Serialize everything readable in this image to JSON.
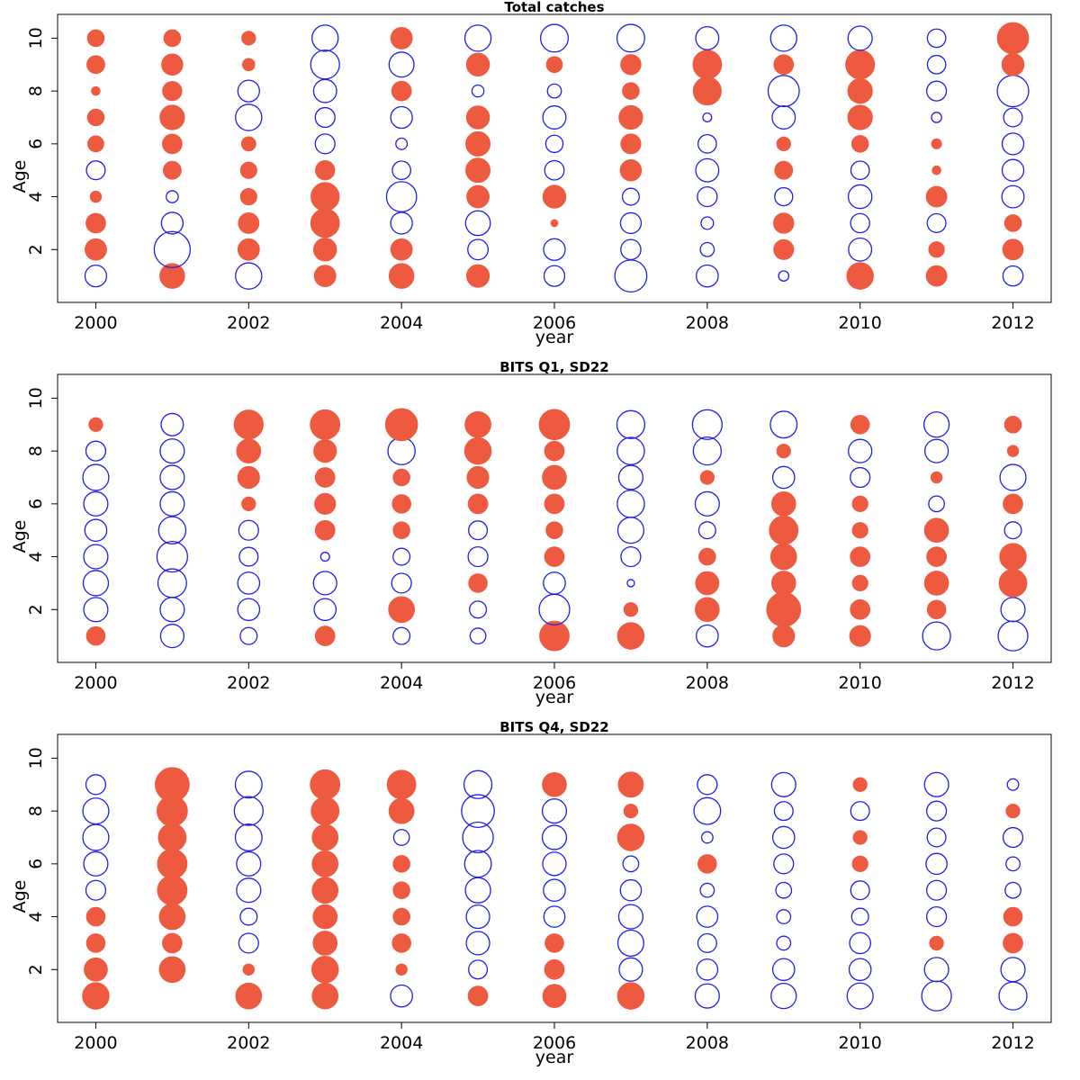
{
  "figure": {
    "colors": {
      "positive": "#ee5a40",
      "negative": "#1f1fe6",
      "frame": "#000000"
    },
    "encoding": "Bubble area proportional to |residual|; filled red = positive, open blue = negative"
  },
  "chart_data": [
    {
      "type": "scatter",
      "subtype": "bubble",
      "title": "Total catches",
      "xlabel": "year",
      "ylabel": "Age",
      "xlim": [
        1999.5,
        2012.5
      ],
      "ylim": [
        0,
        10.9
      ],
      "xticks": [
        2000,
        2002,
        2004,
        2006,
        2008,
        2010,
        2012
      ],
      "yticks": [
        2,
        4,
        6,
        8,
        10
      ],
      "ages": [
        1,
        2,
        3,
        4,
        5,
        6,
        7,
        8,
        9,
        10
      ],
      "series": [
        {
          "year": 2000,
          "values": [
            -0.36,
            0.36,
            0.3,
            0.1,
            -0.27,
            0.2,
            0.22,
            0.06,
            0.25,
            0.22
          ]
        },
        {
          "year": 2001,
          "values": [
            0.48,
            -1.0,
            -0.36,
            -0.11,
            0.25,
            0.3,
            0.47,
            0.29,
            0.35,
            0.22
          ]
        },
        {
          "year": 2002,
          "values": [
            -0.53,
            0.36,
            0.33,
            0.21,
            0.21,
            0.16,
            -0.53,
            -0.36,
            0.12,
            0.15
          ]
        },
        {
          "year": 2003,
          "values": [
            0.36,
            0.41,
            0.64,
            0.62,
            0.29,
            -0.3,
            -0.3,
            -0.41,
            -0.64,
            -0.53
          ]
        },
        {
          "year": 2004,
          "values": [
            0.48,
            0.36,
            -0.36,
            -0.7,
            -0.26,
            -0.1,
            -0.36,
            0.3,
            -0.48,
            0.36
          ]
        },
        {
          "year": 2005,
          "values": [
            0.4,
            -0.32,
            -0.47,
            0.39,
            0.46,
            0.46,
            0.41,
            -0.11,
            0.41,
            -0.53
          ]
        },
        {
          "year": 2006,
          "values": [
            -0.33,
            -0.36,
            0.04,
            0.41,
            -0.29,
            -0.23,
            -0.41,
            -0.15,
            0.2,
            -0.59
          ]
        },
        {
          "year": 2007,
          "values": [
            -0.79,
            -0.31,
            -0.33,
            -0.22,
            0.35,
            0.31,
            0.44,
            0.22,
            0.32,
            -0.59
          ]
        },
        {
          "year": 2008,
          "values": [
            -0.37,
            -0.15,
            -0.12,
            -0.3,
            -0.41,
            -0.26,
            -0.06,
            0.61,
            0.64,
            -0.41
          ]
        },
        {
          "year": 2009,
          "values": [
            -0.08,
            0.31,
            0.32,
            -0.25,
            0.25,
            0.15,
            -0.41,
            -0.75,
            0.3,
            -0.53
          ]
        },
        {
          "year": 2010,
          "values": [
            0.55,
            -0.41,
            -0.28,
            -0.43,
            -0.26,
            0.22,
            0.47,
            0.47,
            0.65,
            -0.45
          ]
        },
        {
          "year": 2011,
          "values": [
            0.33,
            0.19,
            -0.27,
            0.33,
            0.06,
            0.08,
            -0.08,
            -0.3,
            -0.26,
            -0.26
          ]
        },
        {
          "year": 2012,
          "values": [
            -0.31,
            0.33,
            0.22,
            -0.38,
            -0.36,
            -0.36,
            -0.27,
            -0.76,
            0.38,
            0.76
          ]
        }
      ]
    },
    {
      "type": "scatter",
      "subtype": "bubble",
      "title": "BITS Q1, SD22",
      "xlabel": "year",
      "ylabel": "Age",
      "xlim": [
        1999.5,
        2012.5
      ],
      "ylim": [
        0,
        10.9
      ],
      "xticks": [
        2000,
        2002,
        2004,
        2006,
        2008,
        2010,
        2012
      ],
      "yticks": [
        2,
        4,
        6,
        8,
        10
      ],
      "ages": [
        1,
        2,
        3,
        4,
        5,
        6,
        7,
        8,
        9
      ],
      "series": [
        {
          "year": 2000,
          "values": [
            0.27,
            -0.45,
            -0.49,
            -0.45,
            -0.37,
            -0.45,
            -0.52,
            -0.3,
            0.15
          ]
        },
        {
          "year": 2001,
          "values": [
            -0.42,
            -0.45,
            -0.63,
            -0.72,
            -0.57,
            -0.45,
            -0.45,
            -0.45,
            -0.38
          ]
        },
        {
          "year": 2002,
          "values": [
            -0.22,
            -0.37,
            -0.37,
            -0.27,
            -0.3,
            0.15,
            0.37,
            0.45,
            0.66
          ]
        },
        {
          "year": 2003,
          "values": [
            0.3,
            -0.37,
            -0.42,
            -0.06,
            0.3,
            0.34,
            0.3,
            0.4,
            0.68
          ]
        },
        {
          "year": 2004,
          "values": [
            -0.22,
            0.52,
            -0.3,
            -0.22,
            0.22,
            0.27,
            0.22,
            -0.57,
            0.8
          ]
        },
        {
          "year": 2005,
          "values": [
            -0.19,
            -0.22,
            0.27,
            -0.3,
            -0.27,
            0.3,
            0.37,
            0.55,
            0.52
          ]
        },
        {
          "year": 2006,
          "values": [
            0.68,
            -0.72,
            -0.37,
            0.3,
            0.22,
            0.3,
            0.45,
            0.3,
            0.72
          ]
        },
        {
          "year": 2007,
          "values": [
            0.55,
            0.15,
            -0.04,
            -0.3,
            -0.52,
            -0.57,
            -0.45,
            -0.57,
            -0.6
          ]
        },
        {
          "year": 2008,
          "values": [
            -0.37,
            0.45,
            0.42,
            0.22,
            -0.22,
            -0.45,
            0.15,
            -0.6,
            -0.68
          ]
        },
        {
          "year": 2009,
          "values": [
            0.37,
            0.9,
            0.45,
            0.52,
            0.64,
            0.45,
            -0.37,
            0.15,
            -0.55
          ]
        },
        {
          "year": 2010,
          "values": [
            0.34,
            0.3,
            0.19,
            0.3,
            0.19,
            0.19,
            -0.3,
            -0.42,
            0.27
          ]
        },
        {
          "year": 2011,
          "values": [
            -0.6,
            0.27,
            0.45,
            0.3,
            0.45,
            -0.19,
            0.1,
            -0.42,
            -0.49
          ]
        },
        {
          "year": 2012,
          "values": [
            -0.68,
            -0.45,
            0.6,
            0.55,
            -0.22,
            0.3,
            -0.52,
            0.1,
            0.22
          ]
        }
      ]
    },
    {
      "type": "scatter",
      "subtype": "bubble",
      "title": "BITS Q4, SD22",
      "xlabel": "year",
      "ylabel": "Age",
      "xlim": [
        1999.5,
        2012.5
      ],
      "ylim": [
        0,
        10.9
      ],
      "xticks": [
        2000,
        2002,
        2004,
        2006,
        2008,
        2010,
        2012
      ],
      "yticks": [
        2,
        4,
        6,
        8,
        10
      ],
      "ages": [
        1,
        2,
        3,
        4,
        5,
        6,
        7,
        8,
        9
      ],
      "series": [
        {
          "year": 2000,
          "values": [
            0.55,
            0.42,
            0.27,
            0.27,
            -0.3,
            -0.45,
            -0.52,
            -0.52,
            -0.3
          ]
        },
        {
          "year": 2001,
          "values": [
            0.0,
            0.52,
            0.3,
            0.52,
            0.68,
            0.68,
            0.6,
            0.72,
            0.9
          ]
        },
        {
          "year": 2002,
          "values": [
            0.52,
            0.1,
            -0.3,
            -0.22,
            -0.45,
            -0.45,
            -0.55,
            -0.64,
            -0.55
          ]
        },
        {
          "year": 2003,
          "values": [
            0.52,
            0.55,
            0.45,
            0.45,
            0.52,
            0.52,
            0.52,
            0.6,
            0.68
          ]
        },
        {
          "year": 2004,
          "values": [
            -0.37,
            0.1,
            0.27,
            0.22,
            0.22,
            0.22,
            -0.19,
            0.49,
            0.64
          ]
        },
        {
          "year": 2005,
          "values": [
            0.3,
            -0.27,
            -0.42,
            -0.42,
            -0.49,
            -0.55,
            -0.72,
            -0.83,
            -0.6
          ]
        },
        {
          "year": 2006,
          "values": [
            0.42,
            0.3,
            0.27,
            -0.34,
            -0.37,
            -0.42,
            -0.45,
            -0.45,
            0.45
          ]
        },
        {
          "year": 2007,
          "values": [
            0.55,
            -0.42,
            -0.52,
            -0.45,
            -0.34,
            -0.19,
            0.55,
            0.15,
            0.49
          ]
        },
        {
          "year": 2008,
          "values": [
            -0.45,
            -0.34,
            -0.27,
            -0.34,
            -0.15,
            0.27,
            -0.1,
            -0.55,
            -0.3
          ]
        },
        {
          "year": 2009,
          "values": [
            -0.49,
            -0.37,
            -0.15,
            -0.15,
            -0.19,
            -0.3,
            -0.37,
            -0.27,
            -0.45
          ]
        },
        {
          "year": 2010,
          "values": [
            -0.52,
            -0.37,
            -0.34,
            -0.22,
            -0.27,
            0.19,
            0.15,
            -0.27,
            0.15
          ]
        },
        {
          "year": 2011,
          "values": [
            -0.68,
            -0.45,
            0.15,
            -0.3,
            -0.3,
            -0.34,
            -0.27,
            -0.3,
            -0.45
          ]
        },
        {
          "year": 2012,
          "values": [
            -0.6,
            -0.45,
            0.3,
            0.27,
            -0.19,
            -0.15,
            -0.3,
            0.15,
            -0.1
          ]
        }
      ]
    }
  ]
}
